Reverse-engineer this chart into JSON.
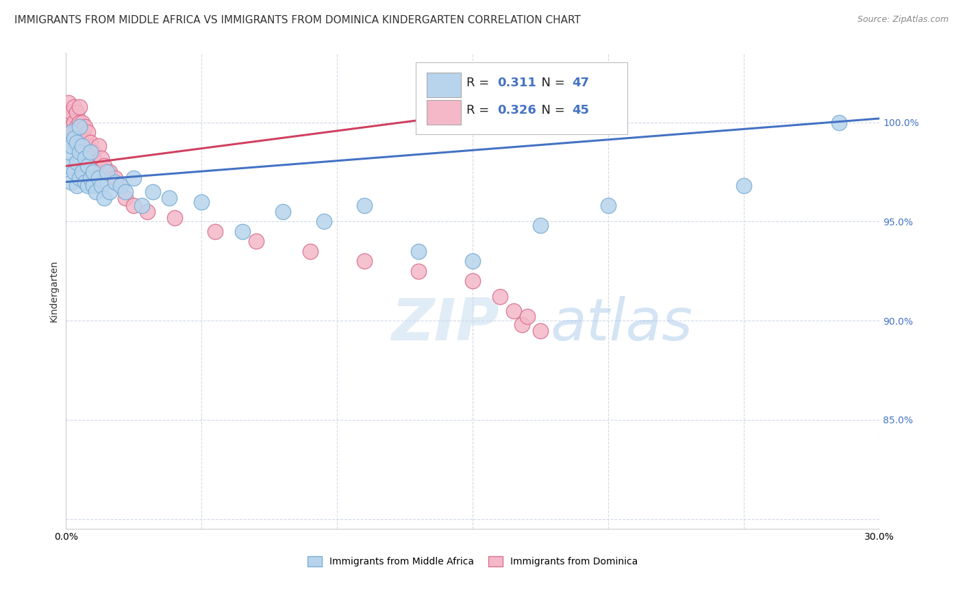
{
  "title": "IMMIGRANTS FROM MIDDLE AFRICA VS IMMIGRANTS FROM DOMINICA KINDERGARTEN CORRELATION CHART",
  "source": "Source: ZipAtlas.com",
  "ylabel": "Kindergarten",
  "xlim": [
    0.0,
    0.3
  ],
  "ylim": [
    0.795,
    1.035
  ],
  "xticks": [
    0.0,
    0.05,
    0.1,
    0.15,
    0.2,
    0.25,
    0.3
  ],
  "xtick_labels": [
    "0.0%",
    "",
    "",
    "",
    "",
    "",
    "30.0%"
  ],
  "yticks": [
    0.8,
    0.85,
    0.9,
    0.95,
    1.0
  ],
  "ytick_labels": [
    "",
    "85.0%",
    "90.0%",
    "95.0%",
    "100.0%"
  ],
  "series1_label": "Immigrants from Middle Africa",
  "series2_label": "Immigrants from Dominica",
  "series1_color": "#b8d4ec",
  "series1_edge": "#7aaed4",
  "series1_line": "#4472c4",
  "series2_color": "#f4b8c8",
  "series2_edge": "#d87090",
  "series2_line": "#d04060",
  "series1_R": "0.311",
  "series1_N": "47",
  "series2_R": "0.326",
  "series2_N": "45",
  "background_color": "#ffffff",
  "grid_color": "#d0d8e8",
  "watermark_zip": "ZIP",
  "watermark_atlas": "atlas",
  "title_fontsize": 11,
  "axis_label_fontsize": 10,
  "tick_fontsize": 10,
  "blue_scatter_x": [
    0.001,
    0.001,
    0.002,
    0.002,
    0.002,
    0.003,
    0.003,
    0.004,
    0.004,
    0.004,
    0.005,
    0.005,
    0.005,
    0.006,
    0.006,
    0.007,
    0.007,
    0.008,
    0.008,
    0.009,
    0.009,
    0.01,
    0.01,
    0.011,
    0.012,
    0.013,
    0.014,
    0.015,
    0.016,
    0.018,
    0.02,
    0.022,
    0.025,
    0.028,
    0.032,
    0.038,
    0.05,
    0.065,
    0.08,
    0.095,
    0.11,
    0.13,
    0.15,
    0.175,
    0.2,
    0.25,
    0.285
  ],
  "blue_scatter_y": [
    0.978,
    0.985,
    0.97,
    0.988,
    0.995,
    0.975,
    0.992,
    0.968,
    0.98,
    0.99,
    0.972,
    0.985,
    0.998,
    0.975,
    0.988,
    0.97,
    0.982,
    0.968,
    0.978,
    0.972,
    0.985,
    0.968,
    0.975,
    0.965,
    0.972,
    0.968,
    0.962,
    0.975,
    0.965,
    0.97,
    0.968,
    0.965,
    0.972,
    0.958,
    0.965,
    0.962,
    0.96,
    0.945,
    0.955,
    0.95,
    0.958,
    0.935,
    0.93,
    0.948,
    0.958,
    0.968,
    1.0
  ],
  "pink_scatter_x": [
    0.001,
    0.001,
    0.001,
    0.002,
    0.002,
    0.002,
    0.003,
    0.003,
    0.003,
    0.004,
    0.004,
    0.004,
    0.005,
    0.005,
    0.005,
    0.006,
    0.006,
    0.007,
    0.007,
    0.008,
    0.008,
    0.009,
    0.01,
    0.011,
    0.012,
    0.013,
    0.014,
    0.016,
    0.018,
    0.02,
    0.022,
    0.025,
    0.03,
    0.04,
    0.055,
    0.07,
    0.09,
    0.11,
    0.13,
    0.15,
    0.16,
    0.165,
    0.168,
    0.17,
    0.175
  ],
  "pink_scatter_y": [
    0.998,
    1.005,
    1.01,
    1.002,
    0.998,
    1.005,
    0.995,
    1.0,
    1.008,
    0.998,
    1.005,
    0.992,
    1.0,
    0.995,
    1.008,
    0.99,
    1.0,
    0.992,
    0.998,
    0.988,
    0.995,
    0.99,
    0.985,
    0.98,
    0.988,
    0.982,
    0.978,
    0.975,
    0.972,
    0.968,
    0.962,
    0.958,
    0.955,
    0.952,
    0.945,
    0.94,
    0.935,
    0.93,
    0.925,
    0.92,
    0.912,
    0.905,
    0.898,
    0.902,
    0.895
  ]
}
